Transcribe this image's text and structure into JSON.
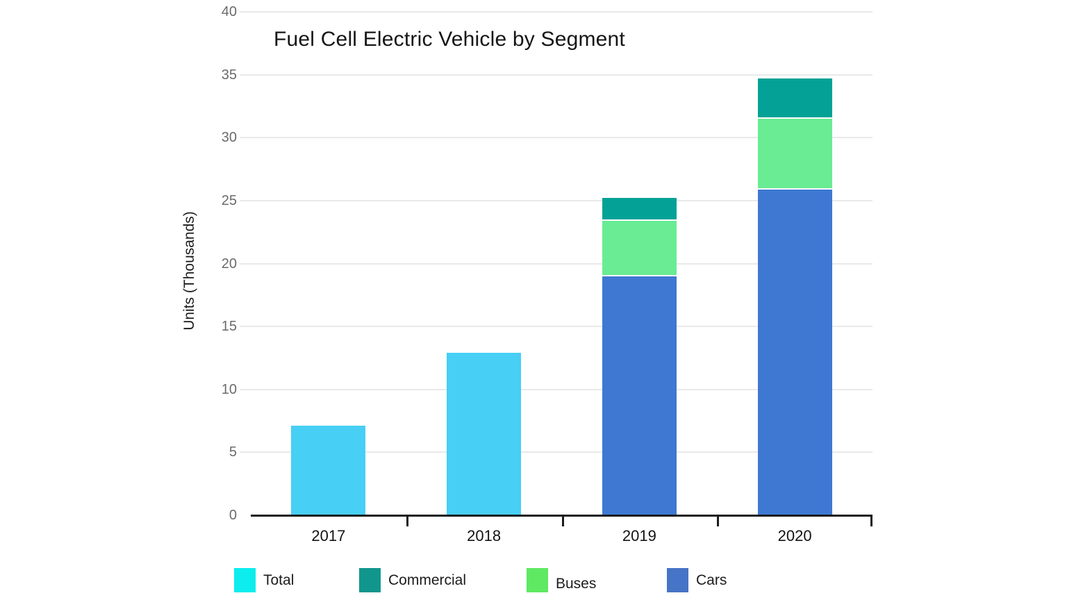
{
  "chart_data": {
    "type": "bar",
    "stacked": true,
    "title": "Fuel Cell Electric Vehicle by Segment",
    "ylabel": "Units (Thousands)",
    "xlabel": "",
    "categories": [
      "2017",
      "2018",
      "2019",
      "2020"
    ],
    "ylim": [
      0,
      40
    ],
    "ytick_step": 5,
    "yticks": [
      "0",
      "5",
      "10",
      "15",
      "20",
      "25",
      "30",
      "35",
      "40"
    ],
    "grid": "horizontal-only",
    "legend_position": "bottom",
    "series": [
      {
        "name": "Total",
        "legend_color": "#0deded",
        "bar_color": "#47cff5",
        "values": [
          7.1,
          12.9,
          null,
          null
        ]
      },
      {
        "name": "Commercial",
        "legend_color": "#11968d",
        "bar_color": "#04a296",
        "values": [
          null,
          null,
          1.8,
          3.2
        ]
      },
      {
        "name": "Buses",
        "legend_color": "#5fe962",
        "bar_color": "#69ec93",
        "values": [
          null,
          null,
          4.4,
          5.6
        ]
      },
      {
        "name": "Cars",
        "legend_color": "#4674c7",
        "bar_color": "#3e78d2",
        "values": [
          null,
          null,
          19.0,
          25.9
        ]
      }
    ],
    "bars": [
      {
        "category": "2017",
        "segments": [
          {
            "series": "Total",
            "value": 7.1
          }
        ]
      },
      {
        "category": "2018",
        "segments": [
          {
            "series": "Total",
            "value": 12.9
          }
        ]
      },
      {
        "category": "2019",
        "segments": [
          {
            "series": "Cars",
            "value": 19.0
          },
          {
            "series": "Buses",
            "value": 4.4
          },
          {
            "series": "Commercial",
            "value": 1.8
          }
        ]
      },
      {
        "category": "2020",
        "segments": [
          {
            "series": "Cars",
            "value": 25.9
          },
          {
            "series": "Buses",
            "value": 5.6
          },
          {
            "series": "Commercial",
            "value": 3.2
          }
        ]
      }
    ],
    "totals": {
      "2017": 7.1,
      "2018": 12.9,
      "2019": 25.2,
      "2020": 34.7
    },
    "legend": [
      {
        "label": "Total",
        "color": "#0deded"
      },
      {
        "label": "Commercial",
        "color": "#11968d"
      },
      {
        "label": "Buses",
        "color": "#5fe962"
      },
      {
        "label": "Cars",
        "color": "#4674c7"
      }
    ]
  }
}
